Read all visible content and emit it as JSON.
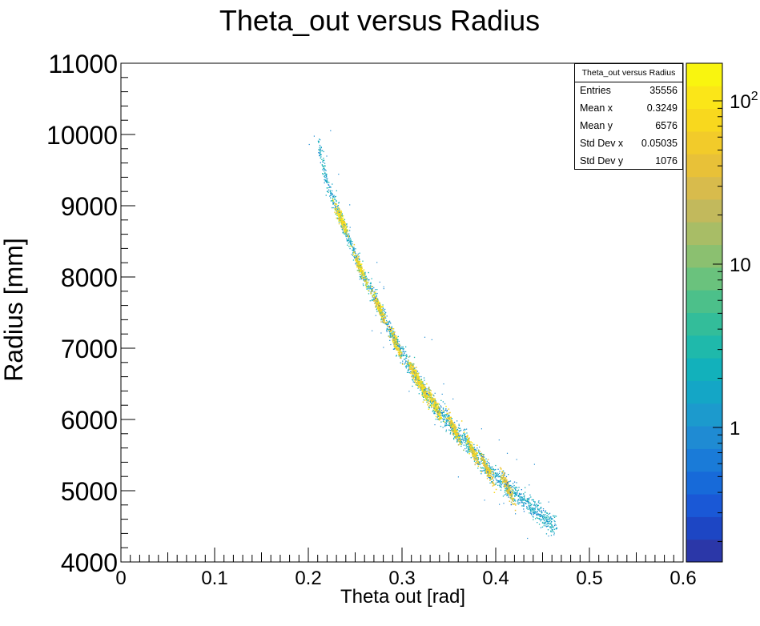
{
  "chart_data": {
    "type": "heatmap",
    "title": "Theta_out versus Radius",
    "xlabel": "Theta out [rad]",
    "ylabel": "Radius [mm]",
    "xlim": [
      0,
      0.6
    ],
    "ylim": [
      4000,
      11000
    ],
    "x_ticks": [
      "0",
      "0.1",
      "0.2",
      "0.3",
      "0.4",
      "0.5",
      "0.6"
    ],
    "y_ticks": [
      "4000",
      "5000",
      "6000",
      "7000",
      "8000",
      "9000",
      "10000",
      "11000"
    ],
    "colorbar": {
      "scale": "log",
      "range": [
        0.15,
        170
      ],
      "tick_labels": [
        "1",
        "10",
        "10^2"
      ],
      "colors": [
        "#2b37a8",
        "#1d46c4",
        "#1a58d6",
        "#176ad9",
        "#1a7bd8",
        "#1f8bd3",
        "#1c9acd",
        "#14a6c6",
        "#12b1bb",
        "#1fb9ab",
        "#33bd9a",
        "#4cc08a",
        "#6ac27d",
        "#8bc070",
        "#a8bd66",
        "#c2b95c",
        "#d8bb4c",
        "#e8c138",
        "#f2cb2a",
        "#f8d81e",
        "#fbe618",
        "#f9f50f"
      ]
    },
    "stats": {
      "title": "Theta_out versus Radius",
      "rows": [
        {
          "label": "Entries",
          "value": "35556"
        },
        {
          "label": "Mean x",
          "value": "0.3249"
        },
        {
          "label": "Mean y",
          "value": "6576"
        },
        {
          "label": "Std Dev x",
          "value": "0.05035"
        },
        {
          "label": "Std Dev y",
          "value": "1076"
        }
      ]
    },
    "curve": [
      [
        0.205,
        10150
      ],
      [
        0.22,
        9300
      ],
      [
        0.235,
        8800
      ],
      [
        0.255,
        8130
      ],
      [
        0.275,
        7580
      ],
      [
        0.293,
        7080
      ],
      [
        0.313,
        6640
      ],
      [
        0.322,
        6430
      ],
      [
        0.335,
        6200
      ],
      [
        0.355,
        5870
      ],
      [
        0.375,
        5560
      ],
      [
        0.39,
        5320
      ],
      [
        0.412,
        5060
      ],
      [
        0.44,
        4750
      ],
      [
        0.465,
        4470
      ]
    ],
    "clusters": [
      {
        "x": 0.235,
        "y": 8800,
        "peak": 160
      },
      {
        "x": 0.255,
        "y": 8130,
        "peak": 140
      },
      {
        "x": 0.275,
        "y": 7580,
        "peak": 130
      },
      {
        "x": 0.293,
        "y": 7080,
        "peak": 120
      },
      {
        "x": 0.313,
        "y": 6640,
        "peak": 130
      },
      {
        "x": 0.322,
        "y": 6430,
        "peak": 150
      },
      {
        "x": 0.335,
        "y": 6200,
        "peak": 120
      },
      {
        "x": 0.355,
        "y": 5870,
        "peak": 110
      },
      {
        "x": 0.375,
        "y": 5560,
        "peak": 110
      },
      {
        "x": 0.39,
        "y": 5320,
        "peak": 90
      },
      {
        "x": 0.412,
        "y": 5060,
        "peak": 80
      }
    ]
  }
}
